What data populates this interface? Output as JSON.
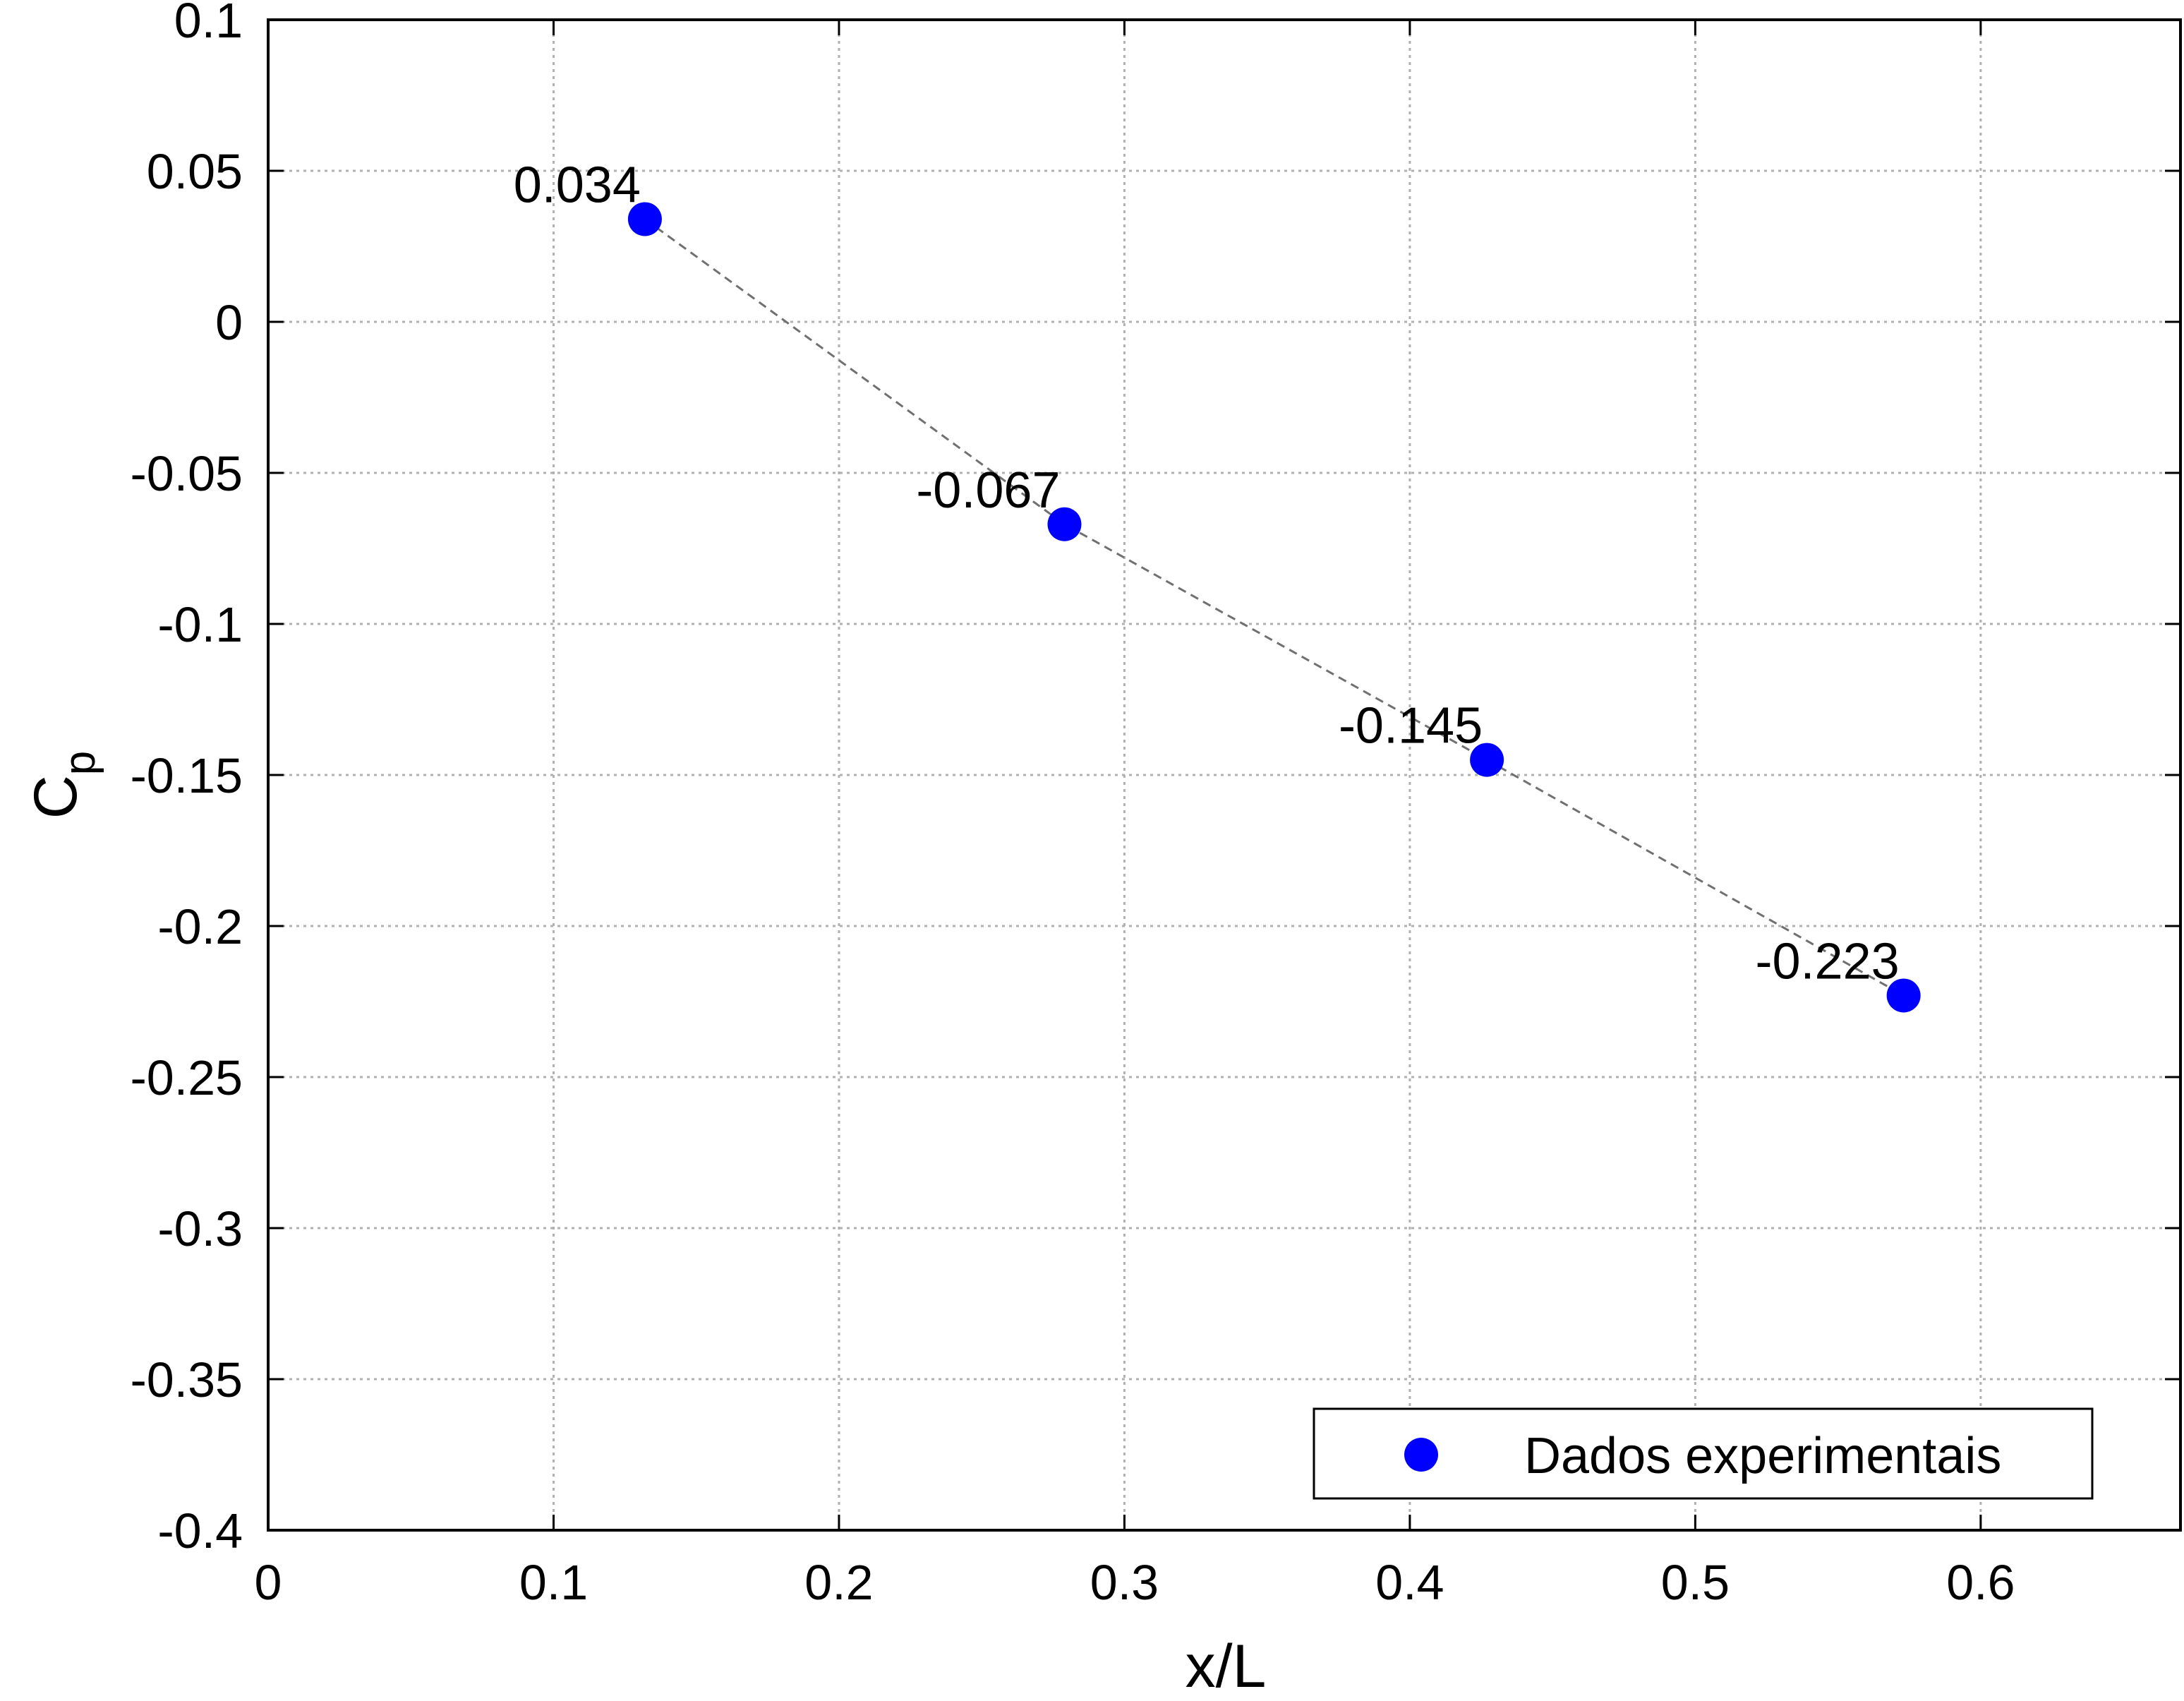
{
  "chart_data": {
    "type": "scatter",
    "xlabel": "x/L",
    "ylabel_main": "C",
    "ylabel_sub": "p",
    "xlim": [
      0,
      0.67
    ],
    "ylim": [
      -0.4,
      0.1
    ],
    "xticks": [
      0,
      0.1,
      0.2,
      0.3,
      0.4,
      0.5,
      0.6
    ],
    "xtick_labels": [
      "0",
      "0.1",
      "0.2",
      "0.3",
      "0.4",
      "0.5",
      "0.6"
    ],
    "yticks": [
      0.1,
      0.05,
      0,
      -0.05,
      -0.1,
      -0.15,
      -0.2,
      -0.25,
      -0.3,
      -0.35,
      -0.4
    ],
    "ytick_labels": [
      "0.1",
      "0.05",
      "0",
      "-0.05",
      "-0.1",
      "-0.15",
      "-0.2",
      "-0.25",
      "-0.3",
      "-0.35",
      "-0.4"
    ],
    "grid": true,
    "legend_position": "bottom-right",
    "series": [
      {
        "name": "Dados experimentais",
        "color": "#0000ff",
        "marker": "circle",
        "trend_line": "dashed-gray",
        "x": [
          0.132,
          0.279,
          0.427,
          0.573
        ],
        "y": [
          0.034,
          -0.067,
          -0.145,
          -0.223
        ],
        "labels": [
          "0.034",
          "-0.067",
          "-0.145",
          "-0.223"
        ]
      }
    ],
    "colors": {
      "grid": "#b0b0b0",
      "trend": "#707070",
      "axis": "#000000"
    }
  }
}
